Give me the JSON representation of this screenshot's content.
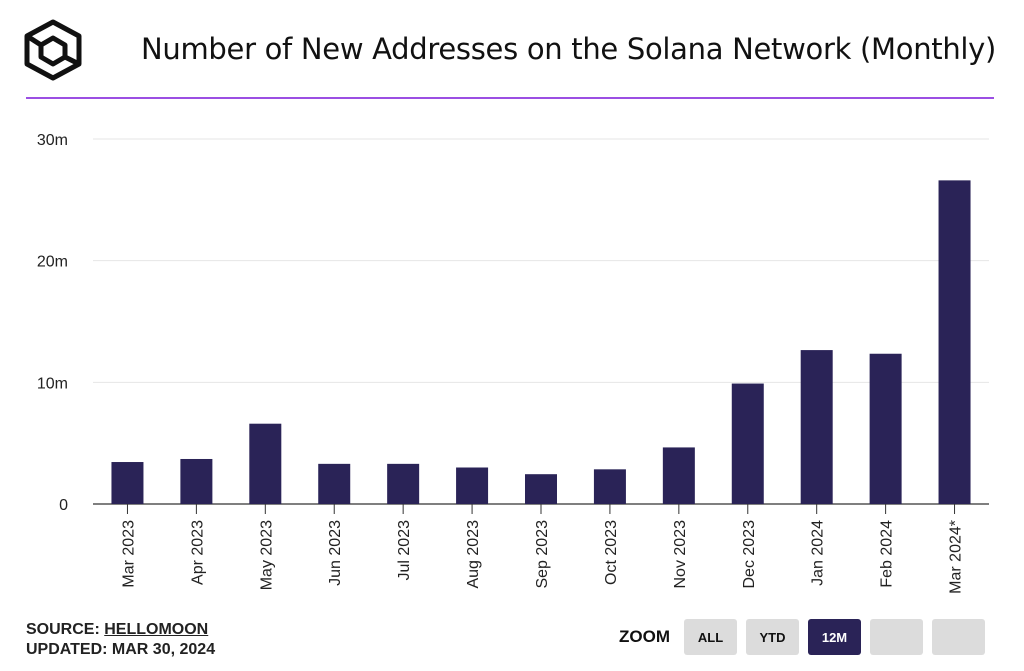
{
  "header": {
    "title": "Number of New Addresses on the Solana Network (Monthly)"
  },
  "footer": {
    "source_prefix": "SOURCE: ",
    "source_name": "HELLOMOON",
    "updated": "UPDATED: MAR 30, 2024"
  },
  "zoom": {
    "label": "ZOOM",
    "buttons": [
      {
        "label": "ALL",
        "active": false
      },
      {
        "label": "YTD",
        "active": false
      },
      {
        "label": "12M",
        "active": true
      },
      {
        "label": "",
        "active": false
      },
      {
        "label": "",
        "active": false
      }
    ]
  },
  "colors": {
    "bar": "#2a2357",
    "accent_rule": "#9b4fe3",
    "grid": "#e6e6e6"
  },
  "chart_data": {
    "type": "bar",
    "title": "Number of New Addresses on the Solana Network (Monthly)",
    "xlabel": "",
    "ylabel": "",
    "ylim": [
      0,
      30000000
    ],
    "yticks": [
      0,
      10000000,
      20000000,
      30000000
    ],
    "ytick_labels": [
      "0",
      "10m",
      "20m",
      "30m"
    ],
    "grid": true,
    "categories": [
      "Mar 2023",
      "Apr 2023",
      "May 2023",
      "Jun 2023",
      "Jul 2023",
      "Aug 2023",
      "Sep 2023",
      "Oct 2023",
      "Nov 2023",
      "Dec 2023",
      "Jan 2024",
      "Feb 2024",
      "Mar 2024*"
    ],
    "values": [
      3450000,
      3700000,
      6600000,
      3300000,
      3300000,
      3000000,
      2450000,
      2850000,
      4650000,
      9900000,
      12650000,
      12350000,
      26600000
    ]
  }
}
